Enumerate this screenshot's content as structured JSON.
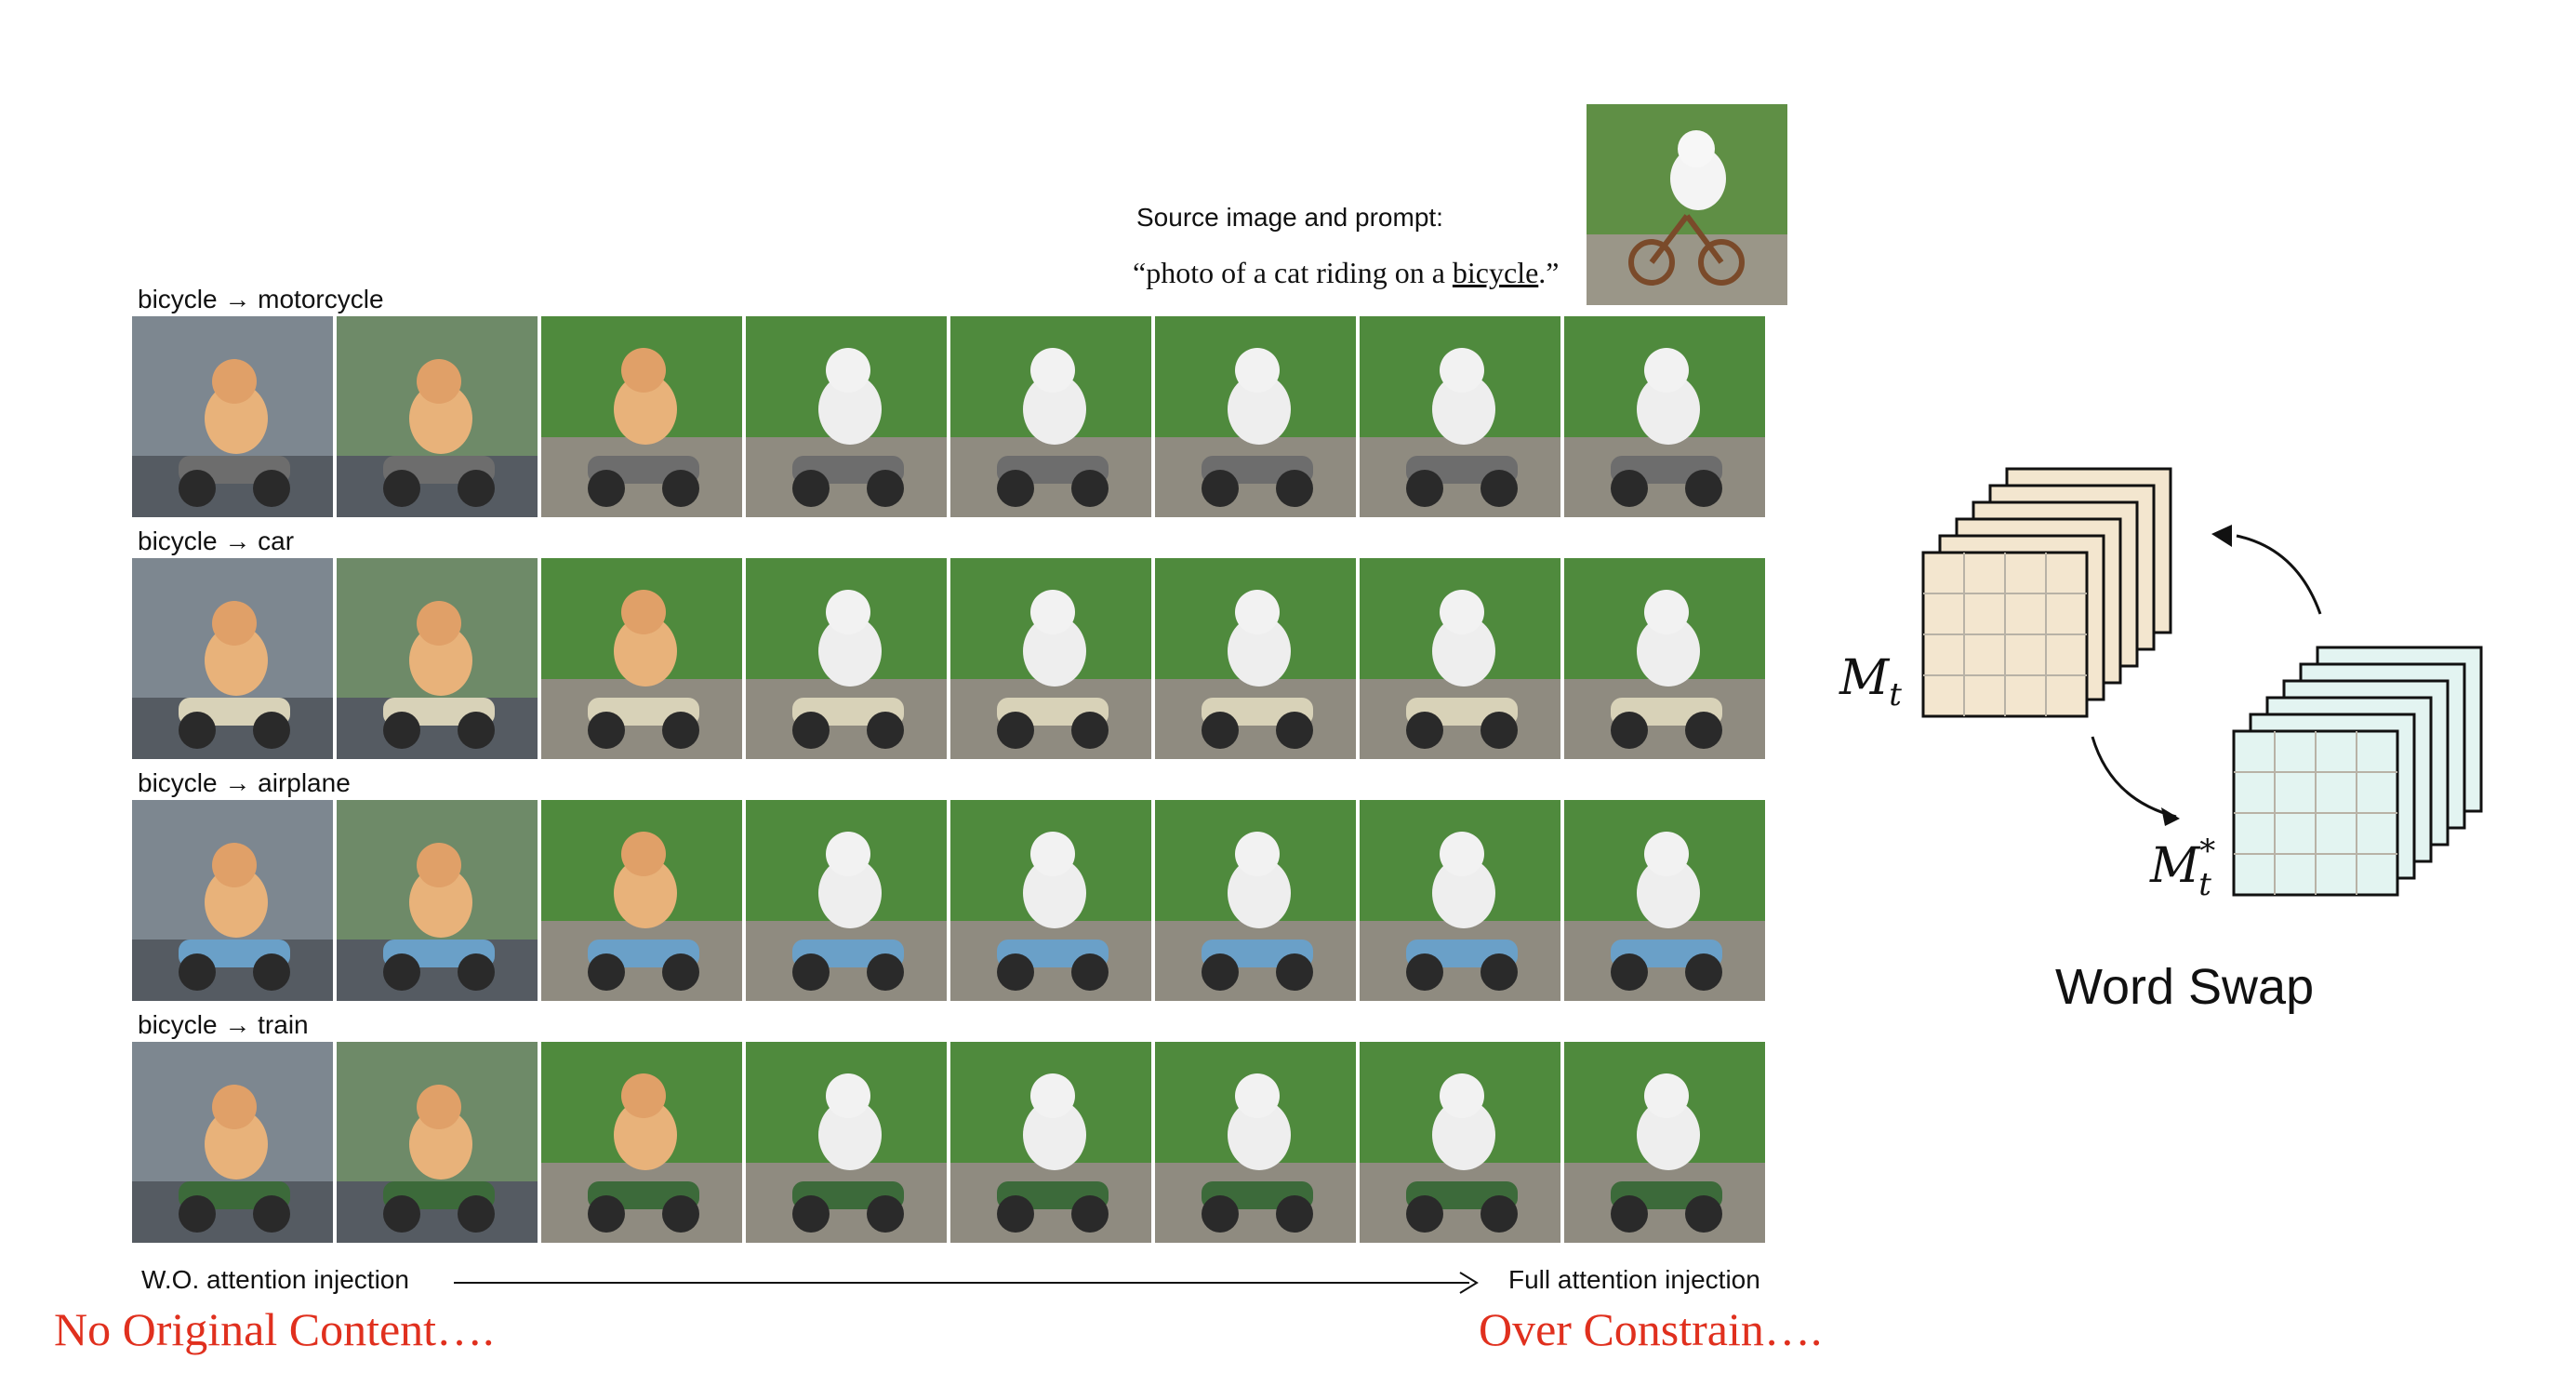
{
  "source": {
    "label": "Source image and prompt:",
    "prompt_before": "“photo of a cat riding on a ",
    "prompt_word": "bicycle",
    "prompt_after": ".”"
  },
  "rows": [
    {
      "label": "bicycle  →  motorcycle",
      "target": "motorcycle",
      "accent": "#6d6d6d"
    },
    {
      "label": "bicycle  →  car",
      "target": "car",
      "accent": "#d8d2b8"
    },
    {
      "label": "bicycle  →  airplane",
      "target": "airplane",
      "accent": "#6aa0c8"
    },
    {
      "label": "bicycle  →  train",
      "target": "train",
      "accent": "#3c6a3a"
    }
  ],
  "axis": {
    "left_label": "W.O. attention injection",
    "right_label": "Full attention injection"
  },
  "annotations": {
    "left": "No Original Content….",
    "right": "Over Constrain…."
  },
  "diagram": {
    "source_map_label": "M",
    "source_map_sub": "t",
    "target_map_label": "M",
    "target_map_sub": "t",
    "target_map_sup": "*",
    "title": "Word Swap",
    "source_color": "#f3e6cf",
    "target_color": "#e3f4f1"
  }
}
